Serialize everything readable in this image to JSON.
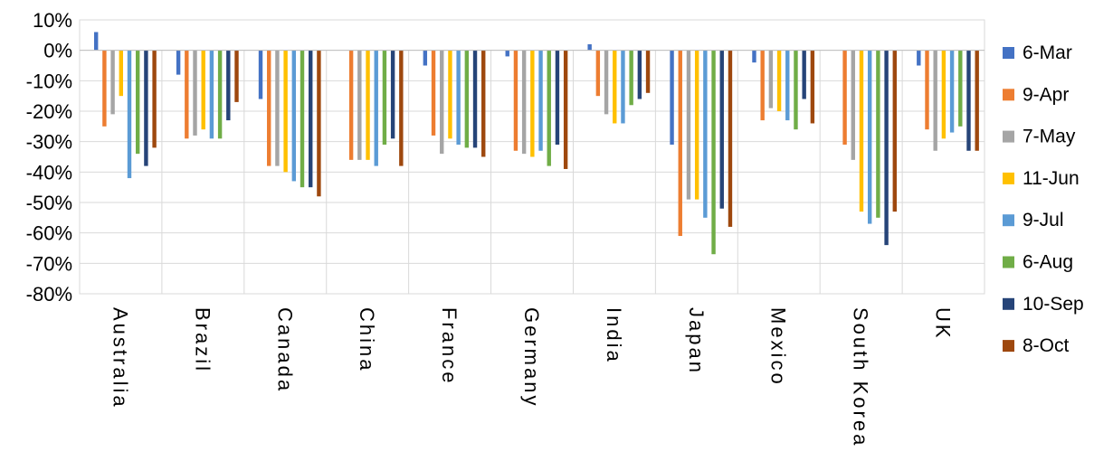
{
  "chart_data": {
    "type": "bar",
    "title": "",
    "xlabel": "",
    "ylabel": "",
    "ylim": [
      -80,
      10
    ],
    "yticks": [
      10,
      0,
      -10,
      -20,
      -30,
      -40,
      -50,
      -60,
      -70,
      -80
    ],
    "ytick_labels": [
      "10%",
      "0%",
      "-10%",
      "-20%",
      "-30%",
      "-40%",
      "-50%",
      "-60%",
      "-70%",
      "-80%"
    ],
    "grid": true,
    "legend_position": "right",
    "categories": [
      "Australia",
      "Brazil",
      "Canada",
      "China",
      "France",
      "Germany",
      "India",
      "Japan",
      "Mexico",
      "South Korea",
      "UK"
    ],
    "series": [
      {
        "name": "6-Mar",
        "color": "#4472C4",
        "values": [
          6,
          -8,
          -16,
          0,
          -5,
          -2,
          2,
          -31,
          -4,
          0,
          -5
        ]
      },
      {
        "name": "9-Apr",
        "color": "#ED7D31",
        "values": [
          -25,
          -29,
          -38,
          -36,
          -28,
          -33,
          -15,
          -61,
          -23,
          -31,
          -26
        ]
      },
      {
        "name": "7-May",
        "color": "#A5A5A5",
        "values": [
          -21,
          -28,
          -38,
          -36,
          -34,
          -34,
          -21,
          -49,
          -19,
          -36,
          -33
        ]
      },
      {
        "name": "11-Jun",
        "color": "#FFC000",
        "values": [
          -15,
          -26,
          -40,
          -36,
          -29,
          -35,
          -24,
          -49,
          -20,
          -53,
          -29
        ]
      },
      {
        "name": "9-Jul",
        "color": "#5B9BD5",
        "values": [
          -42,
          -29,
          -43,
          -38,
          -31,
          -33,
          -24,
          -55,
          -23,
          -57,
          -27
        ]
      },
      {
        "name": "6-Aug",
        "color": "#70AD47",
        "values": [
          -34,
          -29,
          -45,
          -31,
          -32,
          -38,
          -18,
          -67,
          -26,
          -55,
          -25
        ]
      },
      {
        "name": "10-Sep",
        "color": "#264478",
        "values": [
          -38,
          -23,
          -45,
          -29,
          -32,
          -31,
          -16,
          -52,
          -16,
          -64,
          -33
        ]
      },
      {
        "name": "8-Oct",
        "color": "#9E480E",
        "values": [
          -32,
          -17,
          -48,
          -38,
          -35,
          -39,
          -14,
          -58,
          -24,
          -53,
          -33
        ]
      }
    ]
  }
}
